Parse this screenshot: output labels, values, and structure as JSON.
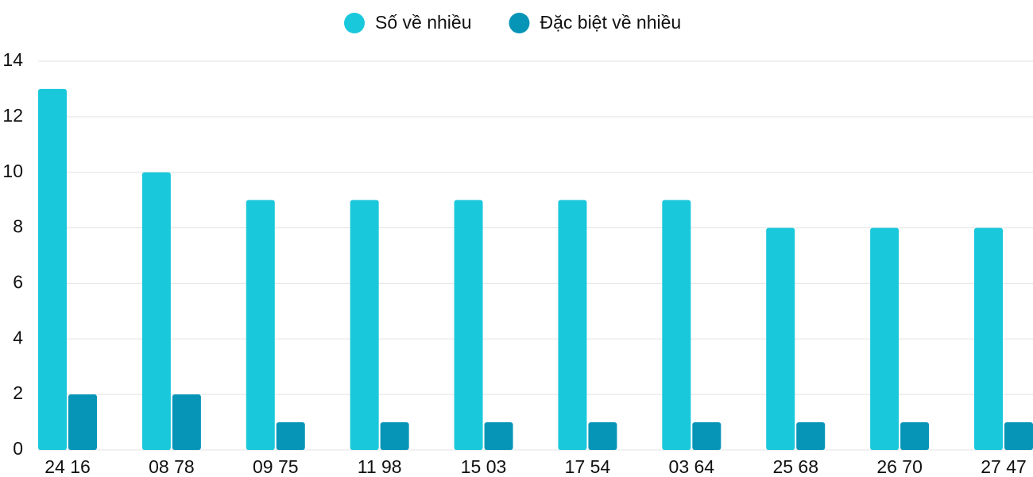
{
  "chart_data": {
    "type": "bar",
    "categories": [
      "24 16",
      "08 78",
      "09 75",
      "11 98",
      "15 03",
      "17 54",
      "03 64",
      "25 68",
      "26 70",
      "27 47"
    ],
    "series": [
      {
        "name": "Số về nhiều",
        "color": "#1ac8db",
        "values": [
          13,
          10,
          9,
          9,
          9,
          9,
          9,
          8,
          8,
          8
        ]
      },
      {
        "name": "Đặc biệt về nhiều",
        "color": "#0795b7",
        "values": [
          2,
          2,
          1,
          1,
          1,
          1,
          1,
          1,
          1,
          1
        ]
      }
    ],
    "ylim": [
      0,
      14
    ],
    "yticks": [
      0,
      2,
      4,
      6,
      8,
      10,
      12,
      14
    ],
    "grid": true,
    "legend": "top"
  }
}
